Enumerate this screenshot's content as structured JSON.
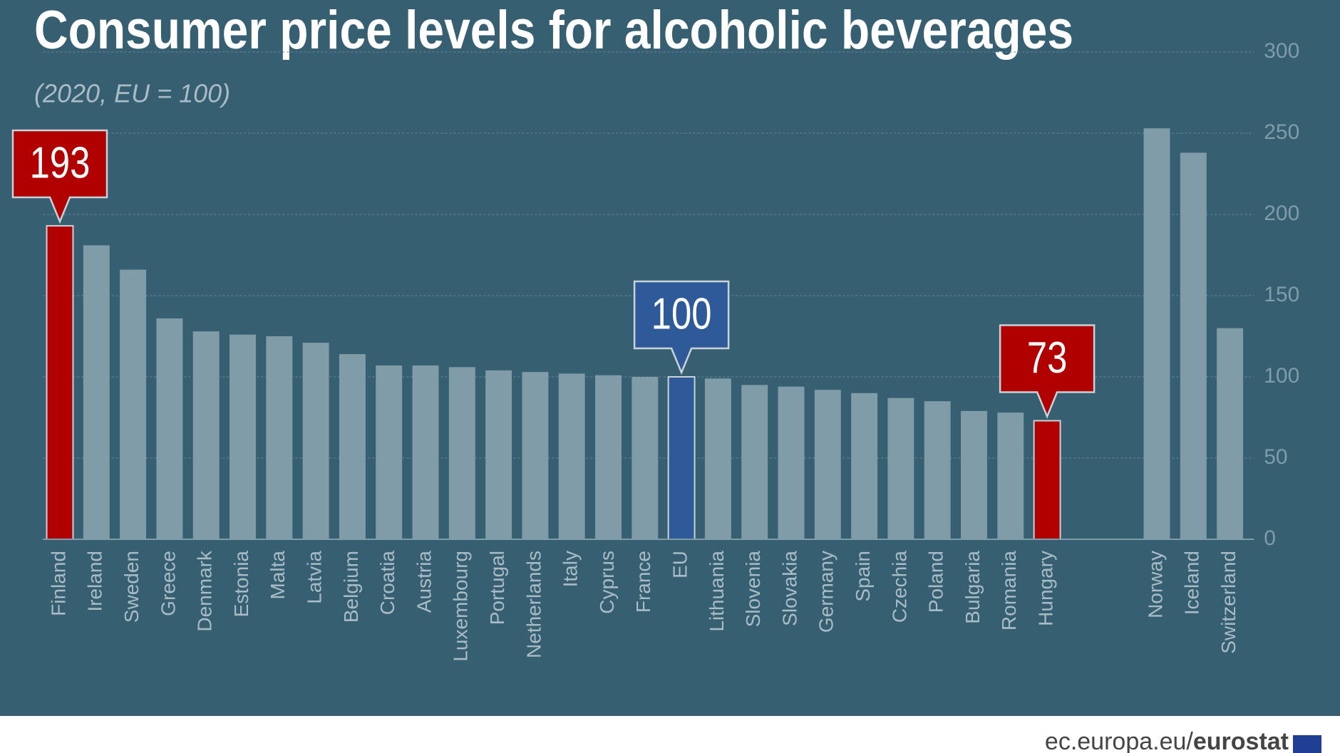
{
  "chart_data": {
    "type": "bar",
    "title": "Consumer price levels for alcoholic beverages",
    "subtitle": "(2020, EU = 100)",
    "categories": [
      "Finland",
      "Ireland",
      "Sweden",
      "Greece",
      "Denmark",
      "Estonia",
      "Malta",
      "Latvia",
      "Belgium",
      "Croatia",
      "Austria",
      "Luxembourg",
      "Portugal",
      "Netherlands",
      "Italy",
      "Cyprus",
      "France",
      "EU",
      "Lithuania",
      "Slovenia",
      "Slovakia",
      "Germany",
      "Spain",
      "Czechia",
      "Poland",
      "Bulgaria",
      "Romania",
      "Hungary",
      null,
      null,
      "Norway",
      "Iceland",
      "Switzerland"
    ],
    "values": [
      193,
      181,
      166,
      136,
      128,
      126,
      125,
      121,
      114,
      107,
      107,
      106,
      104,
      103,
      102,
      101,
      100,
      100,
      99,
      95,
      94,
      92,
      90,
      87,
      85,
      79,
      78,
      73,
      null,
      null,
      253,
      238,
      130
    ],
    "value_labels": [
      "193",
      null,
      null,
      null,
      null,
      null,
      null,
      null,
      null,
      null,
      null,
      null,
      null,
      null,
      null,
      null,
      null,
      "100",
      null,
      null,
      null,
      null,
      null,
      null,
      null,
      null,
      null,
      "73",
      null,
      null,
      null,
      null,
      null
    ],
    "colors": [
      "#b00000",
      "#7f9ca8",
      "#7f9ca8",
      "#7f9ca8",
      "#7f9ca8",
      "#7f9ca8",
      "#7f9ca8",
      "#7f9ca8",
      "#7f9ca8",
      "#7f9ca8",
      "#7f9ca8",
      "#7f9ca8",
      "#7f9ca8",
      "#7f9ca8",
      "#7f9ca8",
      "#7f9ca8",
      "#7f9ca8",
      "#2e5a9a",
      "#7f9ca8",
      "#7f9ca8",
      "#7f9ca8",
      "#7f9ca8",
      "#7f9ca8",
      "#7f9ca8",
      "#7f9ca8",
      "#7f9ca8",
      "#7f9ca8",
      "#b00000",
      null,
      null,
      "#7f9ca8",
      "#7f9ca8",
      "#7f9ca8"
    ],
    "ylim": [
      0,
      300
    ],
    "yticks": [
      0,
      50,
      100,
      150,
      200,
      250,
      300
    ],
    "grid": true,
    "y_axis_side": "right",
    "footer": {
      "site": "ec.europa.eu/",
      "brand": "eurostat"
    }
  }
}
